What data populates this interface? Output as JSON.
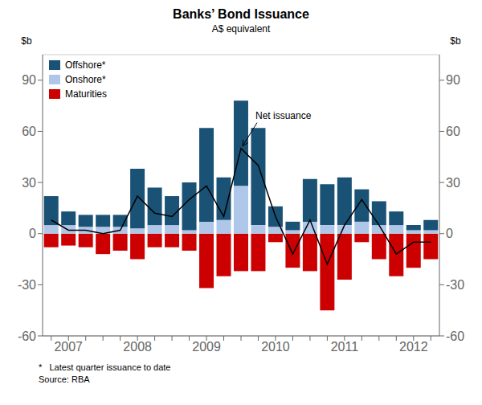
{
  "chart_data": {
    "type": "bar",
    "title": "Banks’ Bond Issuance",
    "subtitle": "A$ equivalent",
    "ylabel": "$b",
    "y2label": "$b",
    "footnote": "*   Latest quarter issuance to date",
    "source": "Source: RBA",
    "categories": [
      null,
      "2007",
      null,
      null,
      null,
      "2008",
      null,
      null,
      null,
      "2009",
      null,
      null,
      null,
      "2010",
      null,
      null,
      null,
      "2011",
      null,
      null,
      null,
      "2012",
      null
    ],
    "stacked": true,
    "grid": true,
    "legend": "upper left",
    "ylim": [
      -60,
      105
    ],
    "yticks": [
      -60,
      -30,
      0,
      30,
      60,
      90
    ],
    "y2lim": [
      -60,
      105
    ],
    "y2ticks": [
      -60,
      -30,
      0,
      30,
      60,
      90
    ],
    "series": [
      {
        "name": "Offshore*",
        "color": "#1a5276",
        "values": [
          17,
          8,
          7,
          7,
          7,
          35,
          22,
          17,
          28,
          55,
          25,
          50,
          57,
          12,
          5,
          25,
          24,
          28,
          19,
          14,
          8,
          3,
          6
        ]
      },
      {
        "name": "Onshore*",
        "color": "#aec6e8",
        "values": [
          5,
          5,
          4,
          4,
          4,
          3,
          5,
          5,
          2,
          7,
          8,
          28,
          5,
          4,
          2,
          7,
          5,
          5,
          7,
          5,
          5,
          2,
          2
        ]
      },
      {
        "name": "Maturities",
        "color": "#cc0000",
        "values": [
          -8,
          -7,
          -8,
          -12,
          -10,
          -15,
          -8,
          -8,
          -10,
          -32,
          -25,
          -22,
          -22,
          -5,
          -20,
          -22,
          -45,
          -27,
          -5,
          -15,
          -25,
          -20,
          -15
        ]
      },
      {
        "type": "line",
        "color": "#000000",
        "values": [
          8,
          2,
          2,
          0,
          2,
          22,
          12,
          10,
          20,
          28,
          10,
          50,
          40,
          10,
          -12,
          8,
          -18,
          5,
          20,
          5,
          -12,
          -5,
          -5
        ]
      }
    ],
    "annotations": [
      {
        "text": "Net issuance"
      }
    ]
  }
}
